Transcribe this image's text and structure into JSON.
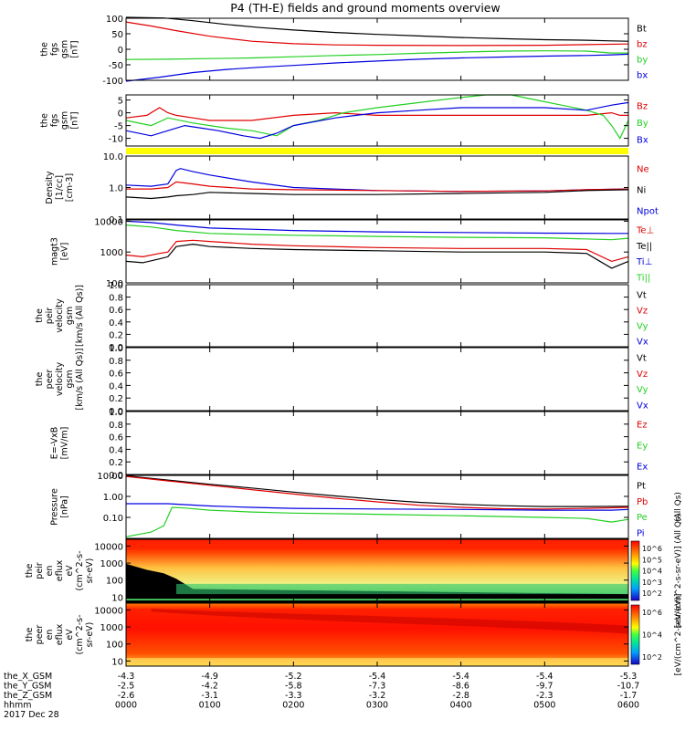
{
  "title": "P4 (TH-E) fields and ground moments overview",
  "colors": {
    "black": "#000000",
    "red": "#e00000",
    "green": "#22d022",
    "blue": "#0000e0",
    "yellow": "#ffff00"
  },
  "chart_data": [
    {
      "type": "line",
      "id": "fgs",
      "ylabel": [
        "the",
        "fgs",
        "gsm",
        "[nT]"
      ],
      "ylim": [
        -100,
        100
      ],
      "yticks": [
        -100,
        -50,
        0,
        50,
        100
      ],
      "legend": [
        {
          "name": "Bt",
          "color": "black"
        },
        {
          "name": "bz",
          "color": "red"
        },
        {
          "name": "by",
          "color": "green"
        },
        {
          "name": "bx",
          "color": "blue"
        }
      ],
      "series": [
        {
          "name": "Bt",
          "color": "black",
          "x": [
            0,
            0.45,
            0.8,
            1.2,
            1.6,
            2,
            2.5,
            3,
            3.5,
            4,
            4.5,
            5,
            5.5,
            5.8,
            6
          ],
          "y": [
            103,
            101,
            92,
            80,
            70,
            62,
            54,
            48,
            43,
            38,
            34,
            31,
            29,
            27,
            26
          ]
        },
        {
          "name": "bz",
          "color": "red",
          "x": [
            0,
            0.3,
            0.6,
            1,
            1.5,
            2,
            2.5,
            3,
            4,
            5,
            5.5,
            6
          ],
          "y": [
            88,
            75,
            60,
            42,
            26,
            18,
            14,
            13,
            12,
            13,
            15,
            17
          ]
        },
        {
          "name": "by",
          "color": "green",
          "x": [
            0,
            0.5,
            1,
            1.5,
            2,
            2.5,
            3,
            3.5,
            4,
            4.5,
            5,
            5.5,
            5.8,
            6
          ],
          "y": [
            -33,
            -32,
            -30,
            -28,
            -24,
            -20,
            -17,
            -13,
            -9,
            -6,
            -5,
            -6,
            -12,
            -12
          ]
        },
        {
          "name": "bx",
          "color": "blue",
          "x": [
            0,
            0.4,
            0.8,
            1.2,
            1.6,
            2,
            2.5,
            3,
            3.5,
            4,
            4.5,
            5,
            5.5,
            5.8,
            6
          ],
          "y": [
            -103,
            -90,
            -75,
            -65,
            -58,
            -52,
            -44,
            -38,
            -32,
            -28,
            -25,
            -22,
            -20,
            -18,
            -16
          ]
        }
      ]
    },
    {
      "type": "line",
      "id": "fgs_dsl",
      "ylabel": [
        "the",
        "fgs",
        "gsm",
        "[nT]"
      ],
      "ylim": [
        -13,
        7
      ],
      "yticks": [
        -10,
        -5,
        0,
        5
      ],
      "legend": [
        {
          "name": "Bz",
          "color": "red"
        },
        {
          "name": "By",
          "color": "green"
        },
        {
          "name": "Bx",
          "color": "blue"
        }
      ],
      "series": [
        {
          "name": "Bz",
          "color": "red",
          "x": [
            0,
            0.25,
            0.4,
            0.5,
            0.6,
            0.8,
            1,
            1.5,
            2,
            2.5,
            3,
            3.5,
            4,
            4.5,
            5,
            5.5,
            5.8,
            5.9,
            6
          ],
          "y": [
            -2,
            -1,
            2,
            0,
            -1,
            -2,
            -3,
            -3,
            -1,
            0,
            -1,
            -1,
            -1,
            -1,
            -1,
            -1,
            0,
            -1,
            -1
          ]
        },
        {
          "name": "By",
          "color": "green",
          "x": [
            0,
            0.3,
            0.5,
            0.8,
            1,
            1.2,
            1.5,
            1.8,
            2,
            2.3,
            2.6,
            3,
            3.5,
            4,
            4.3,
            4.6,
            4.9,
            5.2,
            5.5,
            5.7,
            5.8,
            5.9,
            6
          ],
          "y": [
            -3,
            -5,
            -2,
            -4,
            -5,
            -6,
            -7,
            -9,
            -5,
            -3,
            0,
            2,
            4,
            6,
            7,
            7,
            5,
            3,
            1,
            -1,
            -5,
            -10,
            -3
          ]
        },
        {
          "name": "Bx",
          "color": "blue",
          "x": [
            0,
            0.3,
            0.5,
            0.7,
            0.9,
            1.1,
            1.4,
            1.6,
            1.8,
            2,
            2.5,
            3,
            3.5,
            4,
            4.5,
            5,
            5.5,
            5.8,
            6
          ],
          "y": [
            -7,
            -9,
            -7,
            -5,
            -6,
            -7,
            -9,
            -10,
            -8,
            -5,
            -2,
            0,
            1,
            2,
            2,
            2,
            1,
            3,
            4
          ]
        }
      ]
    },
    {
      "type": "line",
      "id": "density",
      "ylog": true,
      "ylabel": [
        "Density",
        "[1/cc]",
        "[cm-3]"
      ],
      "ylim": [
        0.1,
        10
      ],
      "yticks": [
        0.1,
        1,
        10
      ],
      "ytick_labels": [
        "0.1",
        "1.0",
        "10.0"
      ],
      "legend": [
        {
          "name": "Ne",
          "color": "red"
        },
        {
          "name": "Ni",
          "color": "black"
        },
        {
          "name": "Npot",
          "color": "blue"
        }
      ],
      "series": [
        {
          "name": "Npot",
          "color": "blue",
          "x": [
            0,
            0.3,
            0.5,
            0.6,
            0.65,
            0.8,
            1,
            1.5,
            2,
            3,
            4,
            5,
            5.5,
            6
          ],
          "y": [
            1.2,
            1.1,
            1.3,
            3.5,
            4.0,
            3.2,
            2.5,
            1.5,
            1.0,
            0.8,
            0.75,
            0.78,
            0.85,
            0.9
          ]
        },
        {
          "name": "Ne",
          "color": "red",
          "x": [
            0,
            0.3,
            0.5,
            0.6,
            0.8,
            1,
            1.5,
            2,
            3,
            4,
            5,
            5.5,
            6
          ],
          "y": [
            0.9,
            0.9,
            1.0,
            1.5,
            1.3,
            1.1,
            0.9,
            0.85,
            0.8,
            0.75,
            0.78,
            0.85,
            0.9
          ]
        },
        {
          "name": "Ni",
          "color": "black",
          "x": [
            0,
            0.3,
            0.5,
            0.6,
            0.8,
            1,
            1.5,
            2,
            3,
            4,
            5,
            5.5,
            6
          ],
          "y": [
            0.5,
            0.45,
            0.5,
            0.55,
            0.6,
            0.7,
            0.65,
            0.6,
            0.6,
            0.65,
            0.7,
            0.8,
            0.85
          ]
        }
      ]
    },
    {
      "type": "line",
      "id": "temp",
      "ylog": true,
      "ylabel": [
        "magt3",
        "[eV]"
      ],
      "ylim": [
        100,
        11000
      ],
      "yticks": [
        100,
        1000,
        10000
      ],
      "ytick_labels": [
        "100",
        "1000",
        "10000"
      ],
      "legend": [
        {
          "name": "Te⊥",
          "color": "red"
        },
        {
          "name": "Te||",
          "color": "black"
        },
        {
          "name": "Ti⊥",
          "color": "blue"
        },
        {
          "name": "Ti||",
          "color": "green"
        }
      ],
      "series": [
        {
          "name": "Ti⊥",
          "color": "blue",
          "x": [
            0,
            0.3,
            0.6,
            1,
            1.5,
            2,
            3,
            4,
            5,
            5.8,
            6
          ],
          "y": [
            10000,
            9000,
            7500,
            6000,
            5500,
            5000,
            4500,
            4300,
            4100,
            4000,
            4000
          ]
        },
        {
          "name": "Ti||",
          "color": "green",
          "x": [
            0,
            0.3,
            0.6,
            1,
            1.5,
            2,
            3,
            4,
            5,
            5.8,
            6
          ],
          "y": [
            7500,
            6500,
            5000,
            4000,
            3700,
            3500,
            3200,
            3000,
            2900,
            2500,
            2800
          ]
        },
        {
          "name": "Te⊥",
          "color": "red",
          "x": [
            0,
            0.2,
            0.4,
            0.5,
            0.6,
            0.8,
            1,
            1.5,
            2,
            3,
            4,
            5,
            5.5,
            5.8,
            6
          ],
          "y": [
            800,
            700,
            900,
            1000,
            2200,
            2400,
            2200,
            1800,
            1600,
            1400,
            1300,
            1300,
            1200,
            500,
            700
          ]
        },
        {
          "name": "Te||",
          "color": "black",
          "x": [
            0,
            0.2,
            0.4,
            0.5,
            0.6,
            0.8,
            1,
            1.5,
            2,
            3,
            4,
            5,
            5.5,
            5.8,
            6
          ],
          "y": [
            500,
            450,
            600,
            700,
            1500,
            1800,
            1500,
            1300,
            1200,
            1100,
            1000,
            1000,
            900,
            300,
            500
          ]
        }
      ]
    },
    {
      "type": "line",
      "id": "peir_vel",
      "ylabel": [
        "the",
        "peir",
        "velocity",
        "gsm",
        "[km/s (All Qs)]"
      ],
      "ylim": [
        0,
        1
      ],
      "yticks": [
        0,
        0.2,
        0.4,
        0.6,
        0.8,
        1
      ],
      "ytick_labels": [
        "0.0",
        "0.2",
        "0.4",
        "0.6",
        "0.8",
        "1.0"
      ],
      "legend": [
        {
          "name": "Vt",
          "color": "black"
        },
        {
          "name": "Vz",
          "color": "red"
        },
        {
          "name": "Vy",
          "color": "green"
        },
        {
          "name": "Vx",
          "color": "blue"
        }
      ],
      "series": []
    },
    {
      "type": "line",
      "id": "peer_vel",
      "ylabel": [
        "the",
        "peer",
        "velocity",
        "gsm",
        "[km/s (All Qs)]"
      ],
      "ylim": [
        0,
        1
      ],
      "yticks": [
        0,
        0.2,
        0.4,
        0.6,
        0.8,
        1
      ],
      "ytick_labels": [
        "0.0",
        "0.2",
        "0.4",
        "0.6",
        "0.8",
        "1.0"
      ],
      "legend": [
        {
          "name": "Vt",
          "color": "black"
        },
        {
          "name": "Vz",
          "color": "red"
        },
        {
          "name": "Vy",
          "color": "green"
        },
        {
          "name": "Vx",
          "color": "blue"
        }
      ],
      "series": []
    },
    {
      "type": "line",
      "id": "efield",
      "ylabel": [
        "E=-VxB",
        "[mV/m]"
      ],
      "ylim": [
        0,
        1
      ],
      "yticks": [
        0,
        0.2,
        0.4,
        0.6,
        0.8,
        1
      ],
      "ytick_labels": [
        "0.0",
        "0.2",
        "0.4",
        "0.6",
        "0.8",
        "1.0"
      ],
      "legend": [
        {
          "name": "Ez",
          "color": "red"
        },
        {
          "name": "Ey",
          "color": "green"
        },
        {
          "name": "Ex",
          "color": "blue"
        }
      ],
      "series": []
    },
    {
      "type": "line",
      "id": "pressure",
      "ylog": true,
      "ylabel": [
        "Pressure",
        "[nPa]"
      ],
      "ylim": [
        0.01,
        10
      ],
      "yticks": [
        0.1,
        1,
        10
      ],
      "ytick_labels": [
        "0.10",
        "1.00",
        "10.00"
      ],
      "legend": [
        {
          "name": "Pt",
          "color": "black"
        },
        {
          "name": "Pb",
          "color": "red"
        },
        {
          "name": "Pe",
          "color": "green"
        },
        {
          "name": "Pi",
          "color": "blue"
        }
      ],
      "legend_right_label": "(All Qs)",
      "series": [
        {
          "name": "Pt",
          "color": "black",
          "x": [
            0,
            0.5,
            1,
            1.5,
            2,
            2.5,
            3,
            3.5,
            4,
            4.5,
            5,
            5.5,
            6
          ],
          "y": [
            9.5,
            6,
            3.8,
            2.5,
            1.6,
            1.05,
            0.72,
            0.52,
            0.42,
            0.36,
            0.33,
            0.33,
            0.34
          ]
        },
        {
          "name": "Pb",
          "color": "red",
          "x": [
            0,
            0.5,
            1,
            1.5,
            2,
            2.5,
            3,
            3.5,
            4,
            4.5,
            5,
            5.5,
            6
          ],
          "y": [
            9.0,
            5.5,
            3.4,
            2.1,
            1.3,
            0.82,
            0.55,
            0.38,
            0.3,
            0.26,
            0.25,
            0.27,
            0.3
          ]
        },
        {
          "name": "Pi",
          "color": "blue",
          "x": [
            0,
            0.5,
            1,
            1.5,
            2,
            3,
            4,
            5,
            5.8,
            6
          ],
          "y": [
            0.45,
            0.45,
            0.35,
            0.3,
            0.27,
            0.25,
            0.24,
            0.22,
            0.22,
            0.24
          ]
        },
        {
          "name": "Pe",
          "color": "green",
          "x": [
            0,
            0.3,
            0.45,
            0.55,
            0.7,
            1,
            1.5,
            2,
            3,
            4,
            5,
            5.5,
            5.8,
            6
          ],
          "y": [
            0.012,
            0.02,
            0.04,
            0.3,
            0.28,
            0.22,
            0.18,
            0.16,
            0.14,
            0.12,
            0.1,
            0.09,
            0.06,
            0.08
          ]
        }
      ]
    },
    {
      "type": "heatmap",
      "id": "peir_en",
      "ylabel": [
        "the",
        "peir",
        "en",
        "eflux",
        "eV",
        "(cm^2-s-",
        "sr-eV)"
      ],
      "ylim": [
        5,
        25000
      ],
      "yticks": [
        10,
        100,
        1000,
        10000
      ],
      "ytick_labels": [
        "10",
        "100",
        "1000",
        "10000"
      ],
      "colorbar": {
        "labels": [
          "10^6",
          "10^5",
          "10^4",
          "10^3",
          "10^2"
        ],
        "title": "[eV/(cm^2-s-sr-eV)] (All Qs)"
      }
    },
    {
      "type": "heatmap",
      "id": "peer_en",
      "ylabel": [
        "the",
        "peer",
        "en",
        "eflux",
        "eV",
        "(cm^2-s-",
        "sr-eV)"
      ],
      "ylim": [
        5,
        25000
      ],
      "yticks": [
        10,
        100,
        1000,
        10000
      ],
      "ytick_labels": [
        "10",
        "100",
        "1000",
        "10000"
      ],
      "colorbar": {
        "labels": [
          "10^6",
          "10^4",
          "10^2"
        ],
        "title": "[eV/(cm^2-s-sr-eV)]"
      }
    }
  ],
  "xaxis": {
    "ticks": [
      0,
      1,
      2,
      3,
      4,
      5,
      6
    ],
    "rows": [
      {
        "label": "the_X_GSM",
        "values": [
          "-4.3",
          "-4.9",
          "-5.2",
          "-5.4",
          "-5.4",
          "-5.4",
          "-5.3"
        ]
      },
      {
        "label": "the_Y_GSM",
        "values": [
          "-2.5",
          "-4.2",
          "-5.8",
          "-7.3",
          "-8.6",
          "-9.7",
          "-10.7"
        ]
      },
      {
        "label": "the_Z_GSM",
        "values": [
          "-2.6",
          "-3.1",
          "-3.3",
          "-3.2",
          "-2.8",
          "-2.3",
          "-1.7"
        ]
      },
      {
        "label": "hhmm",
        "values": [
          "0000",
          "0100",
          "0200",
          "0300",
          "0400",
          "0500",
          "0600"
        ]
      }
    ],
    "date": "2017 Dec 28"
  }
}
